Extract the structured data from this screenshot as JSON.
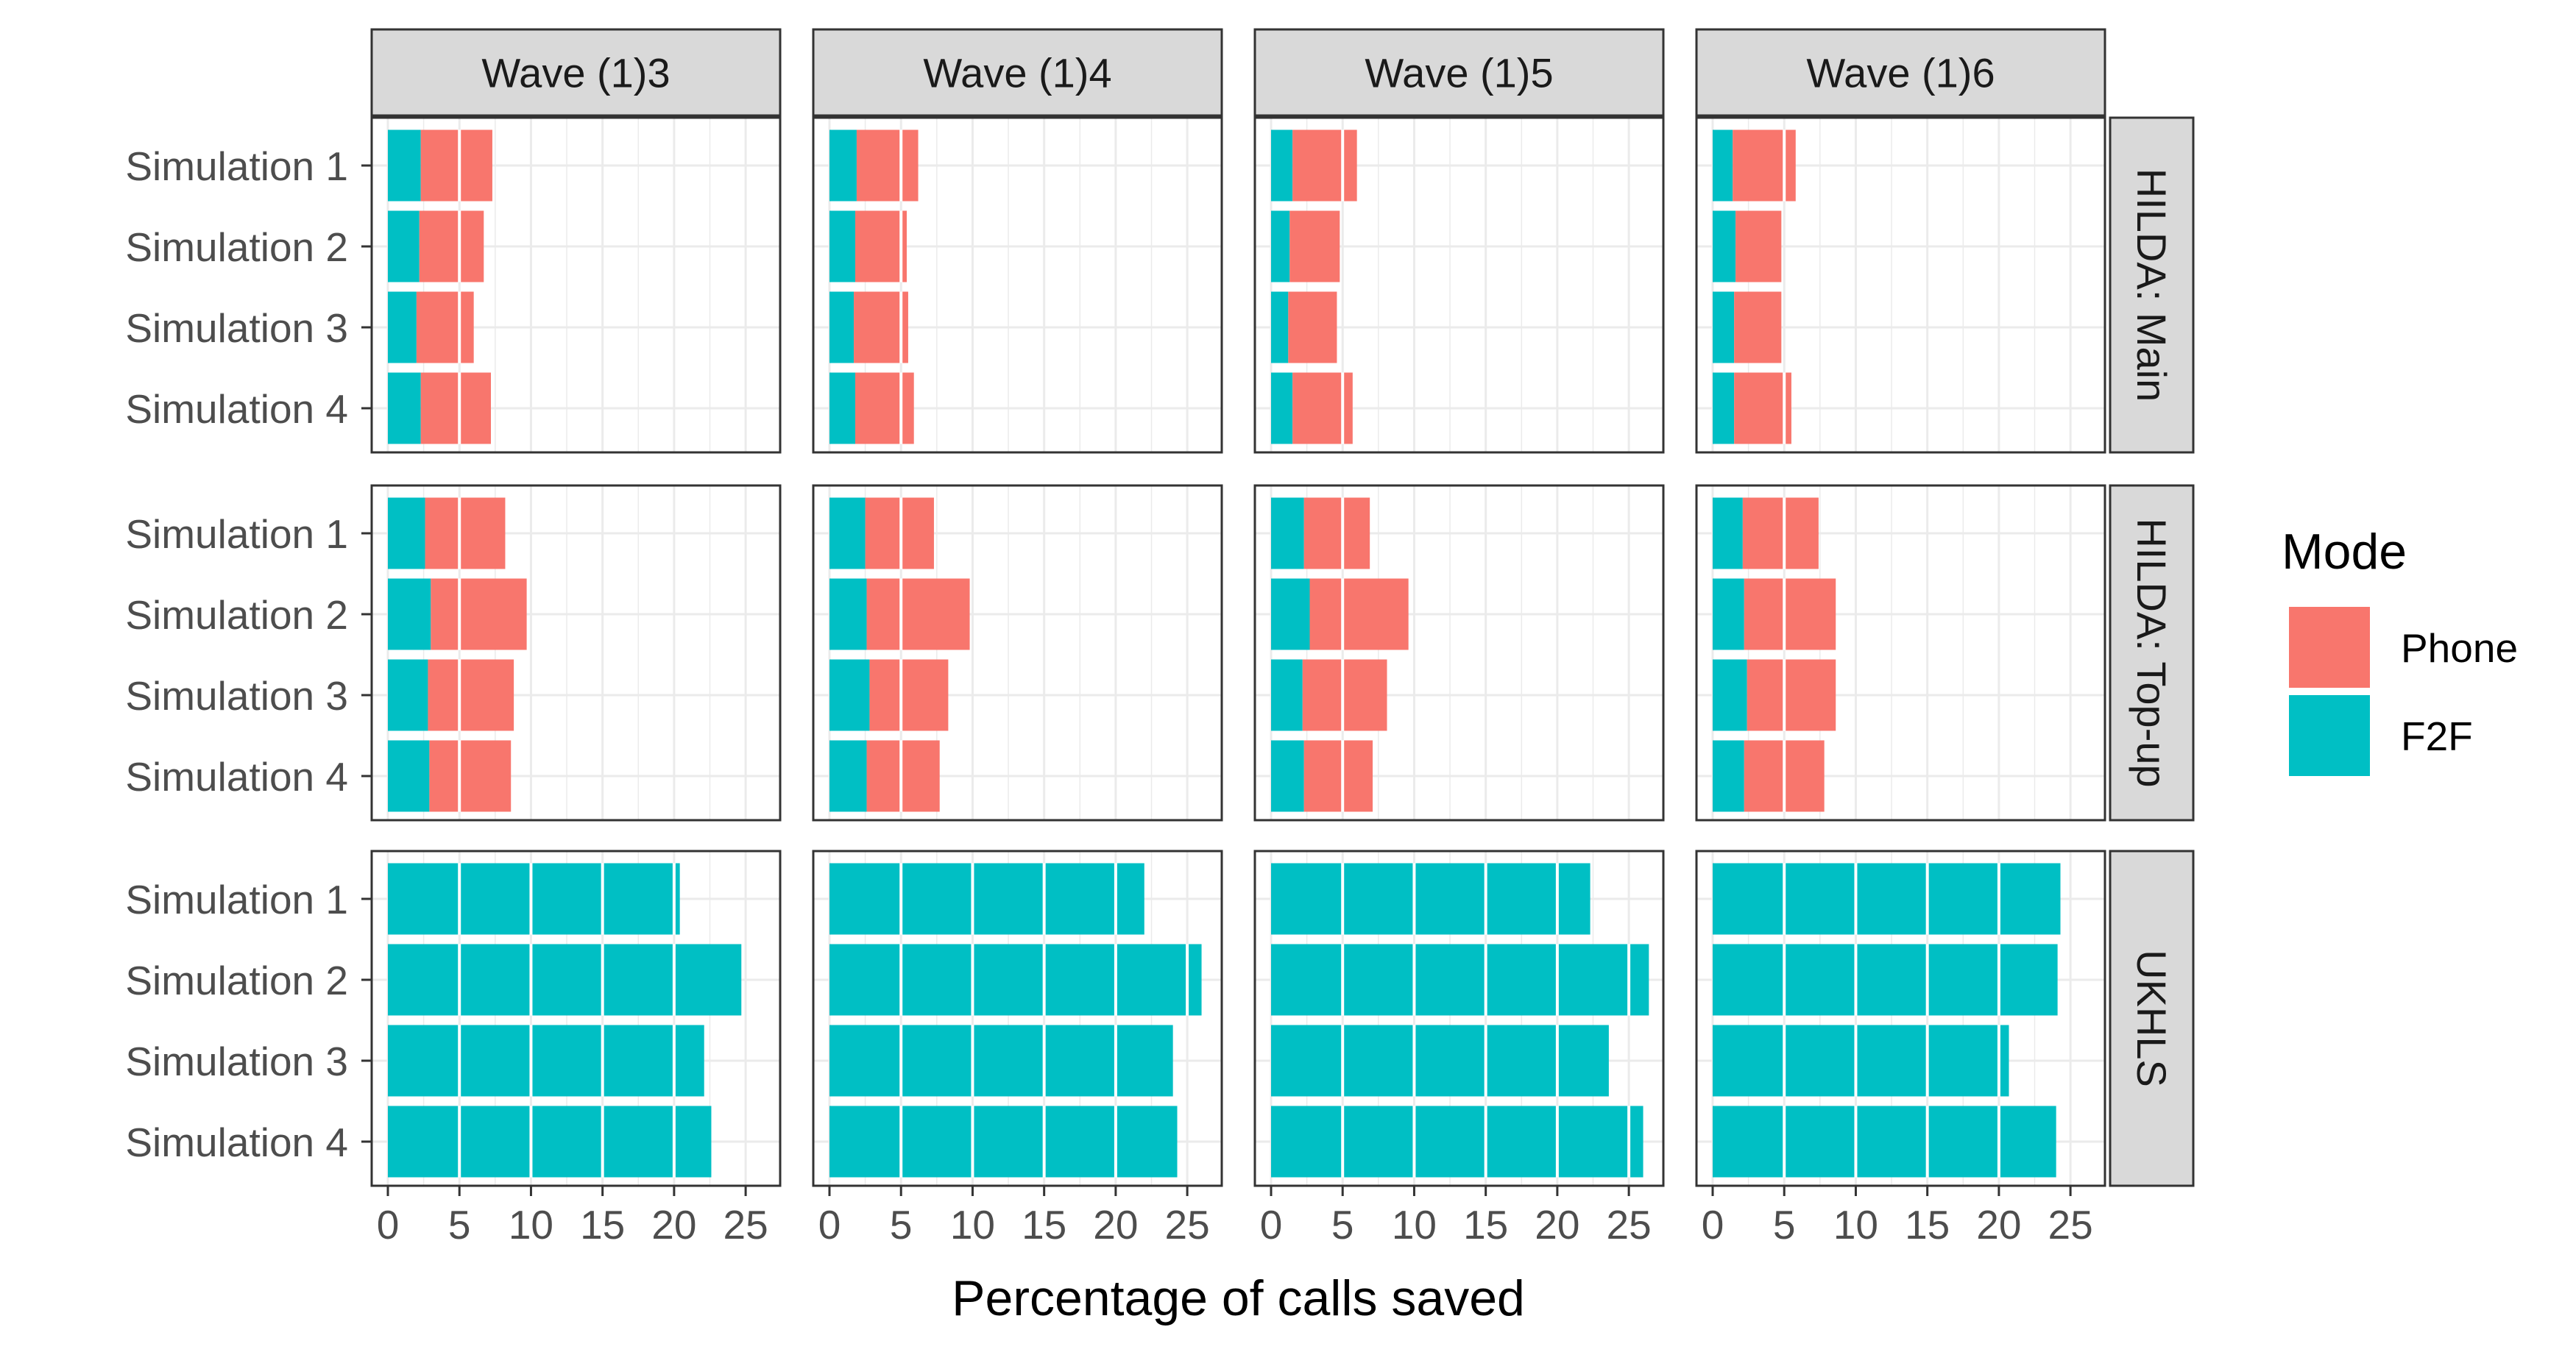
{
  "chart_data": {
    "type": "bar",
    "orientation": "horizontal",
    "stacked": true,
    "xlabel": "Percentage of calls saved",
    "ylabel": "",
    "xlim": [
      0,
      27
    ],
    "xticks": [
      0,
      5,
      10,
      15,
      20,
      25
    ],
    "categories": [
      "Simulation 1",
      "Simulation 2",
      "Simulation 3",
      "Simulation 4"
    ],
    "column_facets": [
      "Wave (1)3",
      "Wave (1)4",
      "Wave (1)5",
      "Wave (1)6"
    ],
    "row_facets": [
      "HILDA: Main",
      "HILDA: Top-up",
      "UKHLS"
    ],
    "grid": true,
    "legend": {
      "title": "Mode",
      "position": "right",
      "entries": [
        {
          "label": "Phone",
          "color": "#F8766D"
        },
        {
          "label": "F2F",
          "color": "#00BFC4"
        }
      ]
    },
    "colors": {
      "Phone": "#F8766D",
      "F2F": "#00BFC4"
    },
    "panels": [
      {
        "row": "HILDA: Main",
        "col": "Wave (1)3",
        "F2F": [
          2.3,
          2.2,
          2.0,
          2.3
        ],
        "Phone": [
          5.0,
          4.5,
          4.0,
          4.9
        ]
      },
      {
        "row": "HILDA: Main",
        "col": "Wave (1)4",
        "F2F": [
          1.9,
          1.8,
          1.7,
          1.8
        ],
        "Phone": [
          4.3,
          3.6,
          3.8,
          4.1
        ]
      },
      {
        "row": "HILDA: Main",
        "col": "Wave (1)5",
        "F2F": [
          1.5,
          1.3,
          1.2,
          1.5
        ],
        "Phone": [
          4.5,
          3.5,
          3.4,
          4.2
        ]
      },
      {
        "row": "HILDA: Main",
        "col": "Wave (1)6",
        "F2F": [
          1.4,
          1.6,
          1.5,
          1.5
        ],
        "Phone": [
          4.4,
          3.2,
          3.3,
          4.0
        ]
      },
      {
        "row": "HILDA: Top-up",
        "col": "Wave (1)3",
        "F2F": [
          2.6,
          3.0,
          2.8,
          2.9
        ],
        "Phone": [
          5.6,
          6.7,
          6.0,
          5.7
        ]
      },
      {
        "row": "HILDA: Top-up",
        "col": "Wave (1)4",
        "F2F": [
          2.5,
          2.6,
          2.8,
          2.6
        ],
        "Phone": [
          4.8,
          7.2,
          5.5,
          5.1
        ]
      },
      {
        "row": "HILDA: Top-up",
        "col": "Wave (1)5",
        "F2F": [
          2.3,
          2.7,
          2.2,
          2.3
        ],
        "Phone": [
          4.6,
          6.9,
          5.9,
          4.8
        ]
      },
      {
        "row": "HILDA: Top-up",
        "col": "Wave (1)6",
        "F2F": [
          2.1,
          2.2,
          2.4,
          2.2
        ],
        "Phone": [
          5.3,
          6.4,
          6.2,
          5.6
        ]
      },
      {
        "row": "UKHLS",
        "col": "Wave (1)3",
        "F2F": [
          20.4,
          24.7,
          22.1,
          22.6
        ],
        "Phone": [
          0,
          0,
          0,
          0
        ]
      },
      {
        "row": "UKHLS",
        "col": "Wave (1)4",
        "F2F": [
          22.0,
          26.0,
          24.0,
          24.3
        ],
        "Phone": [
          0,
          0,
          0,
          0
        ]
      },
      {
        "row": "UKHLS",
        "col": "Wave (1)5",
        "F2F": [
          22.3,
          26.4,
          23.6,
          26.0
        ],
        "Phone": [
          0,
          0,
          0,
          0
        ]
      },
      {
        "row": "UKHLS",
        "col": "Wave (1)6",
        "F2F": [
          24.3,
          24.1,
          20.7,
          24.0
        ],
        "Phone": [
          0,
          0,
          0,
          0
        ]
      }
    ]
  }
}
